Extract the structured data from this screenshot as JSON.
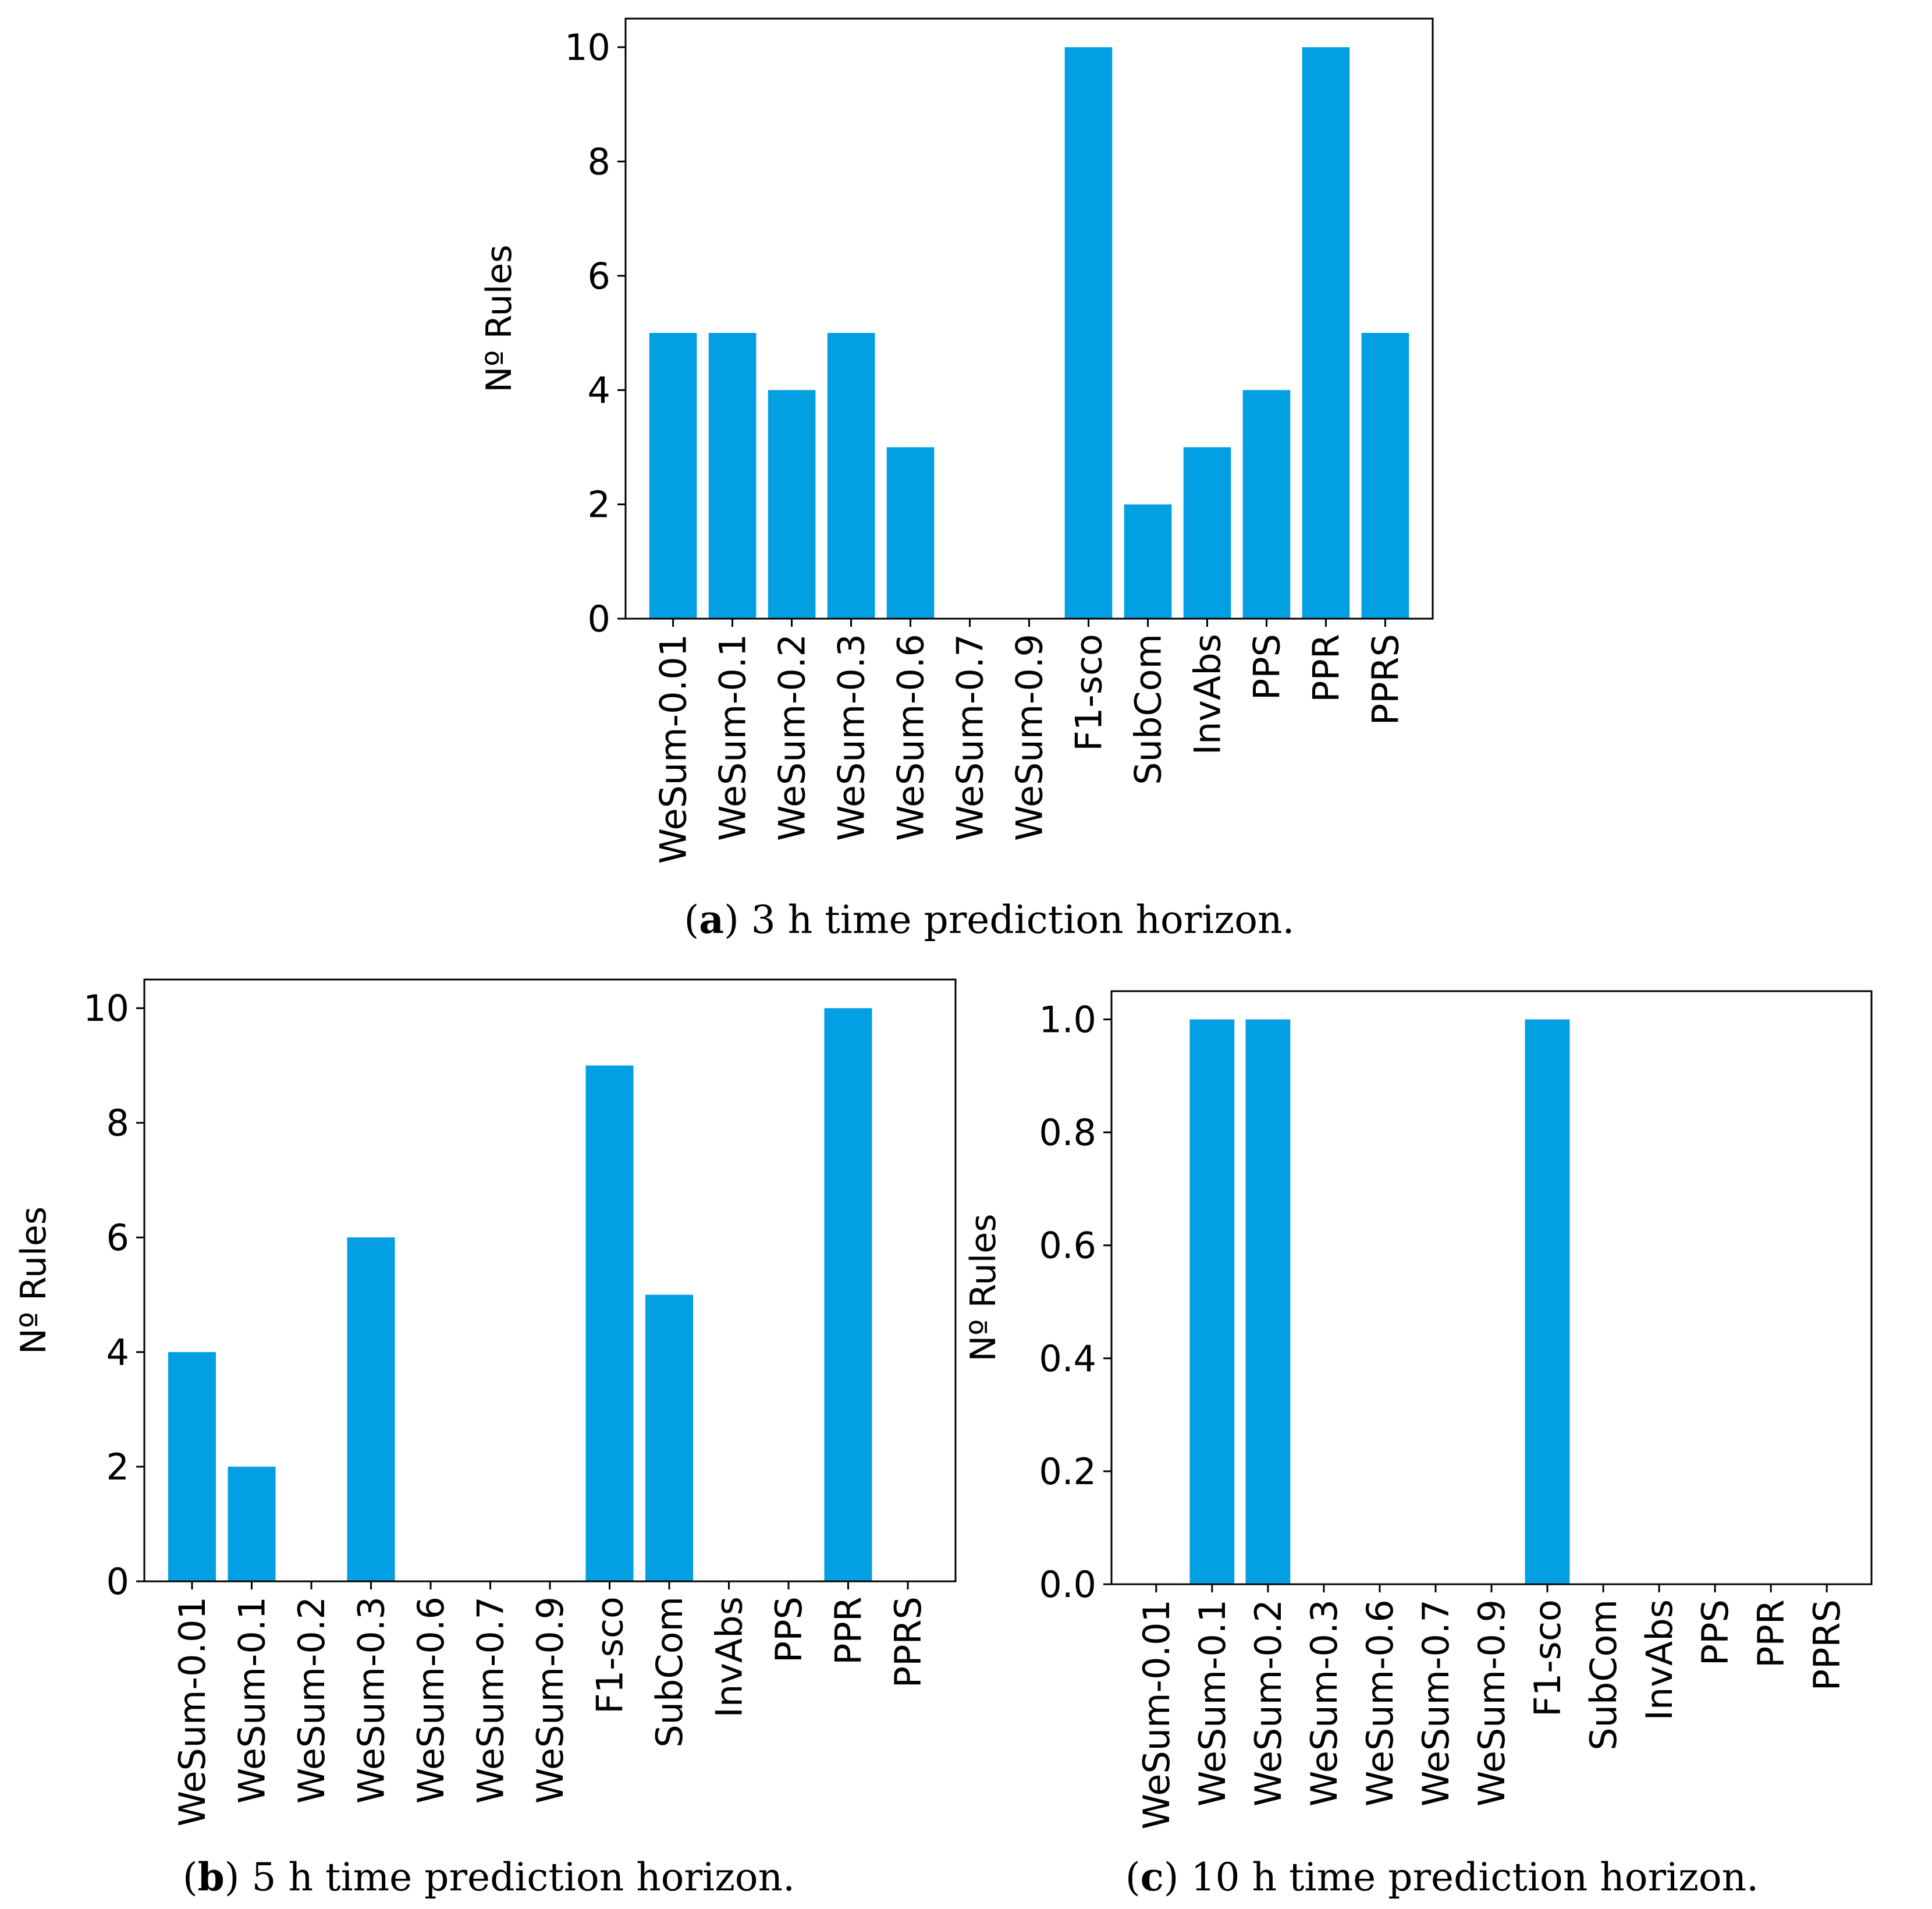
{
  "chart_data": [
    {
      "type": "bar",
      "panel": "a",
      "title": "",
      "ylabel": "Nº Rules",
      "xlabel": "",
      "categories": [
        "WeSum-0.01",
        "WeSum-0.1",
        "WeSum-0.2",
        "WeSum-0.3",
        "WeSum-0.6",
        "WeSum-0.7",
        "WeSum-0.9",
        "F1-sco",
        "SubCom",
        "InvAbs",
        "PPS",
        "PPR",
        "PPRS"
      ],
      "values": [
        5,
        5,
        4,
        5,
        3,
        0,
        0,
        10,
        2,
        3,
        4,
        10,
        5
      ],
      "ylim": [
        0,
        10.5
      ],
      "yticks": [
        "0",
        "2",
        "4",
        "6",
        "8",
        "10"
      ],
      "caption_letter": "a",
      "caption_text": " 3 h time prediction horizon.",
      "color": "#039fe3"
    },
    {
      "type": "bar",
      "panel": "b",
      "title": "",
      "ylabel": "Nº Rules",
      "xlabel": "",
      "categories": [
        "WeSum-0.01",
        "WeSum-0.1",
        "WeSum-0.2",
        "WeSum-0.3",
        "WeSum-0.6",
        "WeSum-0.7",
        "WeSum-0.9",
        "F1-sco",
        "SubCom",
        "InvAbs",
        "PPS",
        "PPR",
        "PPRS"
      ],
      "values": [
        4,
        2,
        0,
        6,
        0,
        0,
        0,
        9,
        5,
        0,
        0,
        10,
        0
      ],
      "ylim": [
        0,
        10.5
      ],
      "yticks": [
        "0",
        "2",
        "4",
        "6",
        "8",
        "10"
      ],
      "caption_letter": "b",
      "caption_text": " 5 h time prediction horizon.",
      "color": "#039fe3"
    },
    {
      "type": "bar",
      "panel": "c",
      "title": "",
      "ylabel": "Nº Rules",
      "xlabel": "",
      "categories": [
        "WeSum-0.01",
        "WeSum-0.1",
        "WeSum-0.2",
        "WeSum-0.3",
        "WeSum-0.6",
        "WeSum-0.7",
        "WeSum-0.9",
        "F1-sco",
        "SubCom",
        "InvAbs",
        "PPS",
        "PPR",
        "PPRS"
      ],
      "values": [
        0,
        1,
        1,
        0,
        0,
        0,
        0,
        1,
        0,
        0,
        0,
        0,
        0
      ],
      "ylim": [
        0,
        1.05
      ],
      "yticks": [
        "0.0",
        "0.2",
        "0.4",
        "0.6",
        "0.8",
        "1.0"
      ],
      "caption_letter": "c",
      "caption_text": " 10 h time prediction horizon.",
      "color": "#039fe3"
    }
  ]
}
